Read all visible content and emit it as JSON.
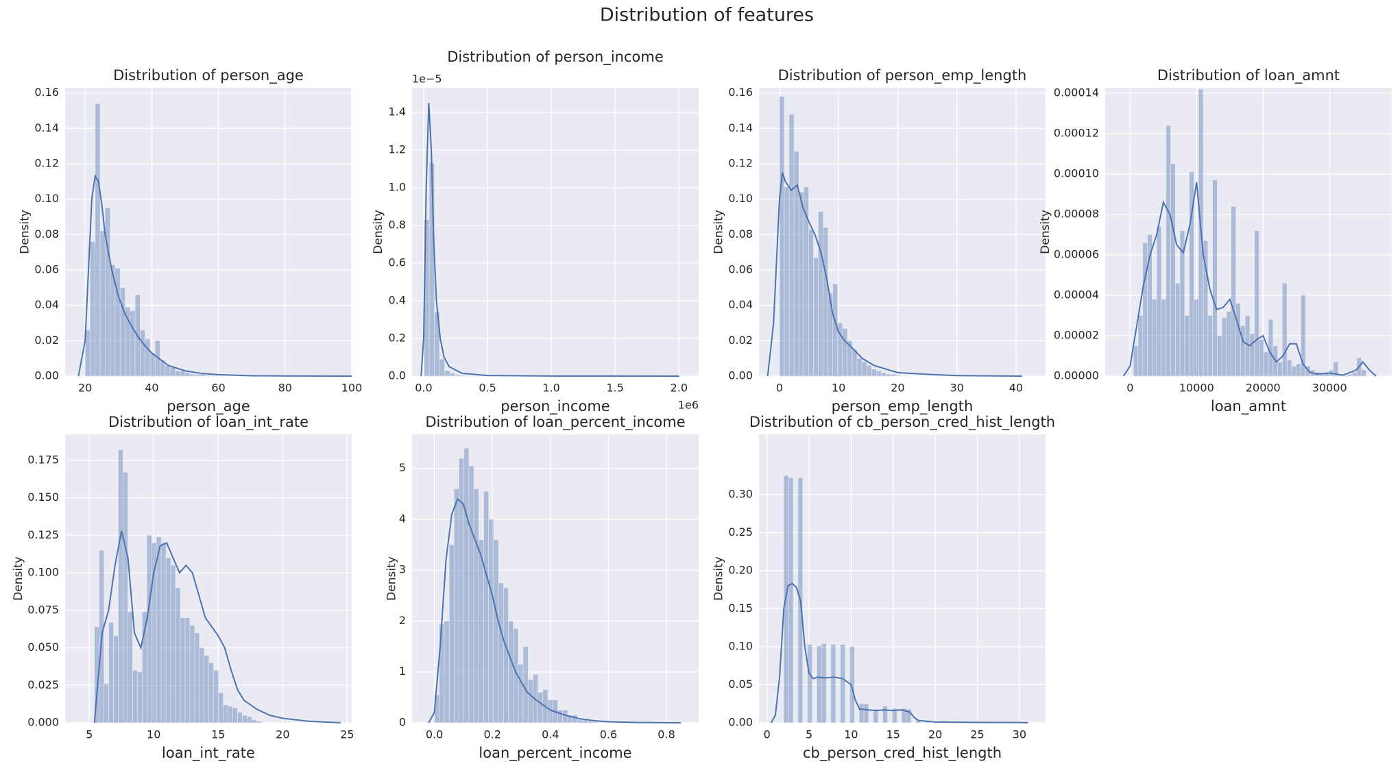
{
  "title": "Distribution of features",
  "chart_data": [
    {
      "type": "histogram",
      "title": "Distribution of person_age",
      "xlabel": "person_age",
      "ylabel": "Density",
      "color": "#4c72b0",
      "grid": true,
      "xlim": [
        14,
        100
      ],
      "ylim": [
        0,
        0.163
      ],
      "xticks": [
        20,
        40,
        60,
        80,
        100
      ],
      "yticks": [
        {
          "value": 0,
          "label": "0.00"
        },
        0.02,
        0.04,
        0.06,
        0.08,
        {
          "value": 0.1,
          "label": "0.10"
        },
        0.12,
        0.14,
        0.16
      ],
      "bins": [
        20,
        21.5,
        23,
        24.5,
        26,
        27.5,
        29,
        30.5,
        32,
        33.5,
        35,
        36.5,
        38,
        39.5,
        41,
        42.5,
        44,
        45.5,
        47,
        48.5,
        50,
        51.5,
        53,
        54.5,
        56,
        57.5,
        59,
        60.5,
        62
      ],
      "values": [
        0.026,
        0.076,
        0.154,
        0.082,
        0.095,
        0.063,
        0.061,
        0.05,
        0.039,
        0.037,
        0.046,
        0.026,
        0.021,
        0.013,
        0.02,
        0.009,
        0.006,
        0.005,
        0.003,
        0.003,
        0.002,
        0.001,
        0.001,
        0.001,
        0.0005,
        0.0003,
        0.0002,
        0.0001
      ],
      "kde": {
        "x": [
          18,
          20,
          21,
          22,
          23,
          24,
          25,
          26,
          28,
          30,
          32,
          34,
          36,
          38,
          40,
          45,
          50,
          55,
          60,
          70,
          80,
          100
        ],
        "y": [
          0,
          0.02,
          0.06,
          0.1,
          0.113,
          0.11,
          0.097,
          0.08,
          0.06,
          0.045,
          0.035,
          0.028,
          0.022,
          0.017,
          0.013,
          0.006,
          0.003,
          0.0015,
          0.0008,
          0.0002,
          0.0001,
          0
        ]
      }
    },
    {
      "type": "histogram",
      "title": "Distribution of person_income",
      "xlabel": "person_income",
      "ylabel": "Density",
      "color": "#4c72b0",
      "grid": true,
      "x_offset_label": "1e6",
      "y_offset_label": "1e−5",
      "xlim": [
        -91000,
        2154000
      ],
      "ylim": [
        0,
        1.53e-05
      ],
      "xticks": [
        {
          "value": 0,
          "label": "0.0"
        },
        {
          "value": 500000,
          "label": "0.5"
        },
        {
          "value": 1000000,
          "label": "1.0"
        },
        {
          "value": 1500000,
          "label": "1.5"
        },
        {
          "value": 2000000,
          "label": "2.0"
        }
      ],
      "yticks": [
        {
          "value": 0,
          "label": "0.0"
        },
        {
          "value": 2e-06,
          "label": "0.2"
        },
        {
          "value": 4e-06,
          "label": "0.4"
        },
        {
          "value": 6e-06,
          "label": "0.6"
        },
        {
          "value": 8e-06,
          "label": "0.8"
        },
        {
          "value": 1e-05,
          "label": "1.0"
        },
        {
          "value": 1.2e-05,
          "label": "1.2"
        },
        {
          "value": 1.4e-05,
          "label": "1.4"
        }
      ],
      "bins": [
        4000,
        44000,
        84000,
        124000,
        164000,
        204000,
        244000,
        284000,
        324000,
        364000,
        404000,
        444000,
        484000
      ],
      "values": [
        8.3e-06,
        1.13e-05,
        3.4e-06,
        9e-07,
        3e-07,
        1.5e-07,
        7e-08,
        4e-08,
        2e-08,
        1e-08,
        1e-08,
        5e-09
      ],
      "kde": {
        "x": [
          -20000,
          0,
          20000,
          40000,
          60000,
          80000,
          100000,
          130000,
          160000,
          200000,
          300000,
          500000,
          1000000,
          2000000
        ],
        "y": [
          0,
          2e-06,
          1e-05,
          1.45e-05,
          1.2e-05,
          7e-06,
          4e-06,
          2e-06,
          1e-06,
          5e-07,
          1.5e-07,
          3e-08,
          5e-09,
          0
        ]
      }
    },
    {
      "type": "histogram",
      "title": "Distribution of person_emp_length",
      "xlabel": "person_emp_length",
      "ylabel": "Density",
      "color": "#4c72b0",
      "grid": true,
      "xlim": [
        -3.47,
        45
      ],
      "ylim": [
        0,
        0.163
      ],
      "xticks": [
        0,
        10,
        20,
        30,
        40
      ],
      "yticks": [
        {
          "value": 0,
          "label": "0.00"
        },
        0.02,
        0.04,
        0.06,
        0.08,
        {
          "value": 0.1,
          "label": "0.10"
        },
        0.12,
        0.14,
        0.16
      ],
      "bins": [
        0,
        0.82,
        1.64,
        2.46,
        3.28,
        4.1,
        4.92,
        5.74,
        6.56,
        7.38,
        8.2,
        9.02,
        9.84,
        10.66,
        11.48,
        12.3,
        13.12,
        13.94,
        14.76,
        15.58,
        16.4,
        17.22,
        18.04,
        18.86,
        19.68,
        20.5
      ],
      "values": [
        0.158,
        0.107,
        0.148,
        0.127,
        0.104,
        0.107,
        0.083,
        0.067,
        0.093,
        0.084,
        0.047,
        0.052,
        0.03,
        0.027,
        0.02,
        0.015,
        0.01,
        0.008,
        0.006,
        0.004,
        0.003,
        0.002,
        0.001,
        0.001,
        0.0005
      ],
      "kde": {
        "x": [
          -2,
          -1,
          0,
          0.5,
          1,
          2,
          3,
          4,
          5,
          6,
          7,
          8,
          9,
          10,
          11,
          12,
          14,
          16,
          18,
          20,
          25,
          30,
          41
        ],
        "y": [
          0,
          0.03,
          0.1,
          0.115,
          0.11,
          0.105,
          0.108,
          0.095,
          0.087,
          0.08,
          0.07,
          0.055,
          0.035,
          0.025,
          0.02,
          0.017,
          0.01,
          0.006,
          0.004,
          0.002,
          0.001,
          0.0003,
          0
        ]
      }
    },
    {
      "type": "histogram",
      "title": "Distribution of loan_amnt",
      "xlabel": "loan_amnt",
      "ylabel": "Density",
      "color": "#4c72b0",
      "grid": true,
      "xlim": [
        -3750,
        39360
      ],
      "ylim": [
        0,
        0.0001427
      ],
      "xticks": [
        0,
        10000,
        20000,
        30000
      ],
      "yticks": [
        {
          "value": 0,
          "label": "0.00000"
        },
        2e-05,
        4e-05,
        6e-05,
        8e-05,
        {
          "value": 0.0001,
          "label": "0.00010"
        },
        0.00012,
        0.00014
      ],
      "bins": [
        500,
        1200,
        1900,
        2600,
        3300,
        4000,
        4700,
        5400,
        6100,
        6800,
        7500,
        8200,
        8900,
        9600,
        10300,
        11000,
        11700,
        12400,
        13100,
        13800,
        14500,
        15200,
        15900,
        16600,
        17300,
        18000,
        18700,
        19400,
        20100,
        20800,
        21500,
        22200,
        22900,
        23600,
        24300,
        25000,
        25700,
        26400,
        27100,
        27800,
        28500,
        29200,
        29900,
        30600,
        31300,
        32000,
        32700,
        33400,
        34100,
        34800,
        35500
      ],
      "values": [
        1.5e-05,
        3e-05,
        6.6e-05,
        7e-05,
        3.8e-05,
        7.4e-05,
        3.8e-05,
        0.000124,
        0.000105,
        4.6e-05,
        7.2e-05,
        3e-05,
        0.000101,
        3.8e-05,
        0.000142,
        6.7e-05,
        3e-05,
        9.7e-05,
        2e-05,
        2.9e-05,
        3.2e-05,
        8.4e-05,
        3.6e-05,
        2.5e-05,
        3e-05,
        2.1e-05,
        7.2e-05,
        1.8e-05,
        1.2e-05,
        2.8e-05,
        1.5e-05,
        7e-06,
        4.6e-05,
        8e-06,
        5e-06,
        6e-06,
        4e-05,
        5e-06,
        3e-06,
        2e-06,
        1e-06,
        2e-06,
        3e-06,
        7e-06,
        1e-06,
        5e-07,
        1e-06,
        2e-06,
        9e-06,
        3e-06
      ],
      "kde": {
        "x": [
          -1000,
          0,
          1000,
          2000,
          3000,
          4000,
          5000,
          6000,
          7000,
          8000,
          9000,
          10000,
          11000,
          12000,
          13000,
          14000,
          15000,
          16000,
          17000,
          18000,
          19000,
          20000,
          21000,
          22000,
          23000,
          24000,
          25000,
          26000,
          27000,
          28000,
          30000,
          32000,
          34000,
          35000,
          36000,
          37000
        ],
        "y": [
          0,
          5e-06,
          2.5e-05,
          4.5e-05,
          6e-05,
          7e-05,
          8.6e-05,
          8e-05,
          6.5e-05,
          6.1e-05,
          7.5e-05,
          9.6e-05,
          6e-05,
          4.3e-05,
          3.3e-05,
          3.4e-05,
          3.8e-05,
          2.8e-05,
          1.7e-05,
          1.5e-05,
          1.8e-05,
          2e-05,
          1.2e-05,
          7e-06,
          1e-05,
          1.6e-05,
          1.6e-05,
          6e-06,
          2e-06,
          1e-06,
          1.5e-06,
          5e-07,
          3e-06,
          7e-06,
          3e-06,
          0
        ]
      }
    },
    {
      "type": "histogram",
      "title": "Distribution of loan_int_rate",
      "xlabel": "loan_int_rate",
      "ylabel": "Density",
      "color": "#4c72b0",
      "grid": true,
      "xlim": [
        3.13,
        25.35
      ],
      "ylim": [
        0,
        0.1923
      ],
      "xticks": [
        5,
        10,
        15,
        20,
        25
      ],
      "yticks": [
        {
          "value": 0,
          "label": "0.000"
        },
        0.025,
        {
          "value": 0.05,
          "label": "0.050"
        },
        0.075,
        {
          "value": 0.1,
          "label": "0.100"
        },
        0.125,
        {
          "value": 0.15,
          "label": "0.150"
        },
        0.175
      ],
      "bins": [
        5.4,
        5.77,
        6.14,
        6.51,
        6.88,
        7.25,
        7.62,
        7.99,
        8.36,
        8.73,
        9.1,
        9.47,
        9.84,
        10.21,
        10.58,
        10.95,
        11.32,
        11.69,
        12.06,
        12.43,
        12.8,
        13.17,
        13.54,
        13.91,
        14.28,
        14.65,
        15.02,
        15.39,
        15.76,
        16.13,
        16.5,
        16.87,
        17.24,
        17.61,
        17.98,
        18.35
      ],
      "values": [
        0.064,
        0.115,
        0.026,
        0.067,
        0.058,
        0.182,
        0.167,
        0.074,
        0.035,
        0.034,
        0.074,
        0.125,
        0.12,
        0.124,
        0.12,
        0.11,
        0.105,
        0.09,
        0.07,
        0.07,
        0.065,
        0.06,
        0.05,
        0.045,
        0.04,
        0.035,
        0.02,
        0.012,
        0.011,
        0.01,
        0.007,
        0.005,
        0.004,
        0.002,
        0.001
      ],
      "kde": {
        "x": [
          5.4,
          5.7,
          6,
          6.5,
          7,
          7.5,
          8,
          8.5,
          9,
          9.5,
          10,
          10.5,
          11,
          11.5,
          12,
          12.5,
          13,
          13.5,
          14,
          14.5,
          15,
          15.5,
          16,
          16.5,
          17,
          18,
          19,
          20,
          22,
          24.5
        ],
        "y": [
          0,
          0.03,
          0.06,
          0.075,
          0.105,
          0.128,
          0.11,
          0.06,
          0.05,
          0.07,
          0.1,
          0.118,
          0.12,
          0.11,
          0.1,
          0.105,
          0.1,
          0.085,
          0.07,
          0.064,
          0.058,
          0.05,
          0.035,
          0.022,
          0.015,
          0.009,
          0.005,
          0.003,
          0.001,
          0
        ]
      }
    },
    {
      "type": "histogram",
      "title": "Distribution of loan_percent_income",
      "xlabel": "loan_percent_income",
      "ylabel": "Density",
      "color": "#4c72b0",
      "grid": true,
      "xlim": [
        -0.077,
        0.911
      ],
      "ylim": [
        0,
        5.67
      ],
      "xticks": [
        {
          "value": 0,
          "label": "0.0"
        },
        0.2,
        0.4,
        0.6,
        0.8
      ],
      "yticks": [
        0,
        1,
        2,
        3,
        4,
        5
      ],
      "bins": [
        0,
        0.017,
        0.034,
        0.051,
        0.068,
        0.085,
        0.102,
        0.119,
        0.136,
        0.153,
        0.17,
        0.187,
        0.204,
        0.221,
        0.238,
        0.255,
        0.272,
        0.289,
        0.306,
        0.323,
        0.34,
        0.357,
        0.374,
        0.391,
        0.408,
        0.425,
        0.442,
        0.459,
        0.476,
        0.493,
        0.51,
        0.527,
        0.544,
        0.561,
        0.578,
        0.595
      ],
      "values": [
        0.55,
        1.95,
        2.0,
        3.5,
        4.6,
        5.2,
        5.4,
        5.05,
        4.6,
        3.6,
        4.55,
        4.0,
        3.6,
        2.75,
        2.65,
        2.0,
        1.85,
        1.15,
        1.5,
        0.85,
        0.95,
        0.6,
        0.65,
        0.45,
        0.45,
        0.25,
        0.25,
        0.15,
        0.15,
        0.06,
        0.05,
        0.03,
        0.02,
        0.01,
        0.01
      ],
      "kde": {
        "x": [
          -0.02,
          0,
          0.02,
          0.04,
          0.06,
          0.08,
          0.1,
          0.12,
          0.14,
          0.16,
          0.18,
          0.2,
          0.22,
          0.24,
          0.26,
          0.28,
          0.3,
          0.32,
          0.35,
          0.4,
          0.45,
          0.5,
          0.55,
          0.6,
          0.7,
          0.85
        ],
        "y": [
          0,
          0.2,
          1.5,
          3.2,
          4.1,
          4.4,
          4.3,
          3.9,
          3.6,
          3.3,
          2.9,
          2.5,
          2.0,
          1.6,
          1.3,
          1.0,
          0.8,
          0.6,
          0.45,
          0.25,
          0.15,
          0.08,
          0.04,
          0.02,
          0.005,
          0
        ]
      }
    },
    {
      "type": "histogram",
      "title": "Distribution of cb_person_cred_hist_length",
      "xlabel": "cb_person_cred_hist_length",
      "ylabel": "Density",
      "color": "#4c72b0",
      "grid": true,
      "xlim": [
        -0.95,
        33.1
      ],
      "ylim": [
        0,
        0.379
      ],
      "xticks": [
        0,
        5,
        10,
        15,
        20,
        25,
        30
      ],
      "yticks": [
        {
          "value": 0,
          "label": "0.00"
        },
        0.05,
        {
          "value": 0.1,
          "label": "0.10"
        },
        0.15,
        {
          "value": 0.2,
          "label": "0.20"
        },
        0.25,
        {
          "value": 0.3,
          "label": "0.30"
        }
      ],
      "bins": [
        2,
        2.56,
        3.12,
        3.68,
        4.24,
        4.8,
        5.36,
        5.92,
        6.48,
        7.04,
        7.6,
        8.16,
        8.72,
        9.28,
        9.84,
        10.4,
        10.96,
        11.52,
        12.08,
        12.64,
        13.2,
        13.76,
        14.32,
        14.88,
        15.44,
        16,
        16.56,
        17.12,
        17.68,
        18.24,
        18.8,
        19.36,
        19.92,
        20.48,
        21.04,
        21.6,
        22.16,
        22.72,
        23.28,
        23.84,
        24.4,
        24.96,
        25.52,
        26.08,
        26.64,
        27.2,
        27.76,
        28.32,
        28.88,
        29.44,
        30
      ],
      "values": [
        0.325,
        0.322,
        0,
        0.322,
        0,
        0.103,
        0,
        0.101,
        0.104,
        0,
        0.103,
        0,
        0.103,
        0,
        0.1,
        0,
        0.025,
        0.025,
        0,
        0.018,
        0,
        0.022,
        0,
        0.019,
        0,
        0.019,
        0.018,
        0,
        0.003,
        0,
        0.002,
        0,
        0.002,
        0,
        0.001,
        0.001,
        0,
        0.001,
        0,
        0.001,
        0,
        0.001,
        0,
        0.001,
        0.001,
        0,
        0.001,
        0,
        0.001,
        0.001
      ],
      "kde": {
        "x": [
          0.5,
          1,
          1.5,
          2,
          2.5,
          3,
          3.5,
          4,
          4.5,
          5,
          5.5,
          6,
          7,
          8,
          9,
          10,
          10.5,
          11,
          12,
          13,
          14,
          15,
          16,
          17,
          17.5,
          18,
          19,
          20,
          25,
          30,
          31
        ],
        "y": [
          0,
          0.01,
          0.06,
          0.15,
          0.18,
          0.183,
          0.178,
          0.16,
          0.1,
          0.065,
          0.058,
          0.06,
          0.059,
          0.06,
          0.058,
          0.05,
          0.03,
          0.018,
          0.017,
          0.016,
          0.017,
          0.016,
          0.017,
          0.014,
          0.007,
          0.003,
          0.002,
          0.001,
          0.0005,
          0.0003,
          0
        ]
      }
    }
  ]
}
